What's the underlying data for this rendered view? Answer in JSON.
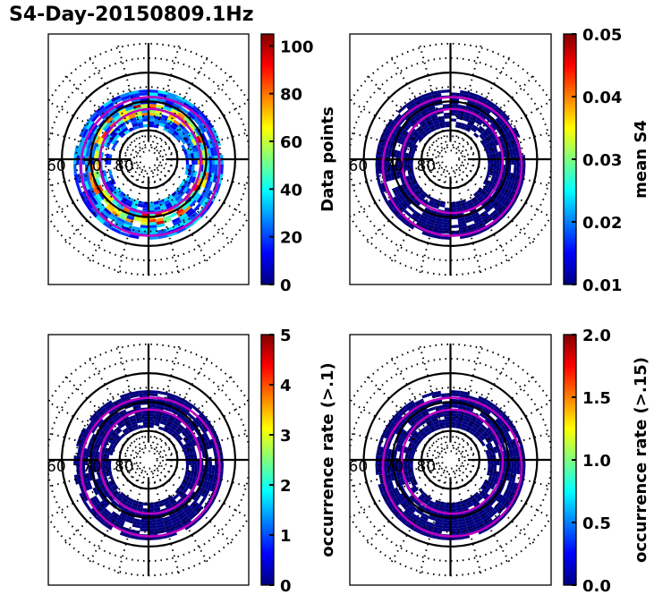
{
  "figure": {
    "title": "S4-Day-20150809.1Hz"
  },
  "colormap": {
    "name": "jet",
    "stops": [
      "#00007f",
      "#0000ff",
      "#007fff",
      "#00ffff",
      "#7fff7f",
      "#ffff00",
      "#ff7f00",
      "#ff0000",
      "#7f0000"
    ]
  },
  "chart_data": [
    {
      "type": "heatmap",
      "projection": "polar (magnetic latitude / local time)",
      "panel": "top-left",
      "title": "",
      "colorbar": {
        "label": "Data points",
        "range": [
          0,
          105
        ],
        "ticks": [
          0,
          20,
          40,
          60,
          80,
          100
        ],
        "tick_labels": [
          "0",
          "20",
          "40",
          "60",
          "80",
          "100"
        ]
      },
      "latitude_rings": [
        60,
        70,
        80
      ],
      "latitude_labels": [
        "60",
        "70",
        "80"
      ],
      "description": "Annular band of data-point counts between ~65 and ~75 deg; mostly 5-40 with peaks up to ~100 (red) on the dayside/top and left edges",
      "band_latitude_range": [
        64,
        77
      ],
      "typical_value_range": [
        5,
        100
      ],
      "auroral_oval_curves": 2,
      "curve_color": "#c000c0"
    },
    {
      "type": "heatmap",
      "projection": "polar (magnetic latitude / local time)",
      "panel": "top-right",
      "title": "",
      "colorbar": {
        "label": "mean S4",
        "range": [
          0.01,
          0.05
        ],
        "ticks": [
          0.01,
          0.02,
          0.03,
          0.04,
          0.05
        ],
        "tick_labels": [
          "0.01",
          "0.02",
          "0.03",
          "0.04",
          "0.05"
        ]
      },
      "latitude_rings": [
        60,
        70,
        80
      ],
      "latitude_labels": [
        "60",
        "70",
        "80"
      ],
      "description": "Same annular band, values at or below colormap minimum (~0.01) everywhere",
      "band_latitude_range": [
        64,
        77
      ],
      "typical_value_range": [
        0.01,
        0.01
      ],
      "auroral_oval_curves": 2,
      "curve_color": "#c000c0"
    },
    {
      "type": "heatmap",
      "projection": "polar (magnetic latitude / local time)",
      "panel": "bottom-left",
      "title": "",
      "colorbar": {
        "label": "occurrence rate (>.1)",
        "range": [
          0,
          5
        ],
        "ticks": [
          0,
          1,
          2,
          3,
          4,
          5
        ],
        "tick_labels": [
          "0",
          "1",
          "2",
          "3",
          "4",
          "5"
        ]
      },
      "latitude_rings": [
        60,
        70,
        80
      ],
      "latitude_labels": [
        "60",
        "70",
        "80"
      ],
      "description": "Same annular band, occurrence rate ~0 everywhere",
      "band_latitude_range": [
        64,
        77
      ],
      "typical_value_range": [
        0,
        0
      ],
      "auroral_oval_curves": 2,
      "curve_color": "#c000c0"
    },
    {
      "type": "heatmap",
      "projection": "polar (magnetic latitude / local time)",
      "panel": "bottom-right",
      "title": "",
      "colorbar": {
        "label": "occurrence rate (>.15)",
        "range": [
          0.0,
          2.0
        ],
        "ticks": [
          0.0,
          0.5,
          1.0,
          1.5,
          2.0
        ],
        "tick_labels": [
          "0.0",
          "0.5",
          "1.0",
          "1.5",
          "2.0"
        ]
      },
      "latitude_rings": [
        60,
        70,
        80
      ],
      "latitude_labels": [
        "60",
        "70",
        "80"
      ],
      "description": "Same annular band, occurrence rate ~0 everywhere",
      "band_latitude_range": [
        64,
        77
      ],
      "typical_value_range": [
        0.0,
        0.0
      ],
      "auroral_oval_curves": 2,
      "curve_color": "#c000c0"
    }
  ]
}
